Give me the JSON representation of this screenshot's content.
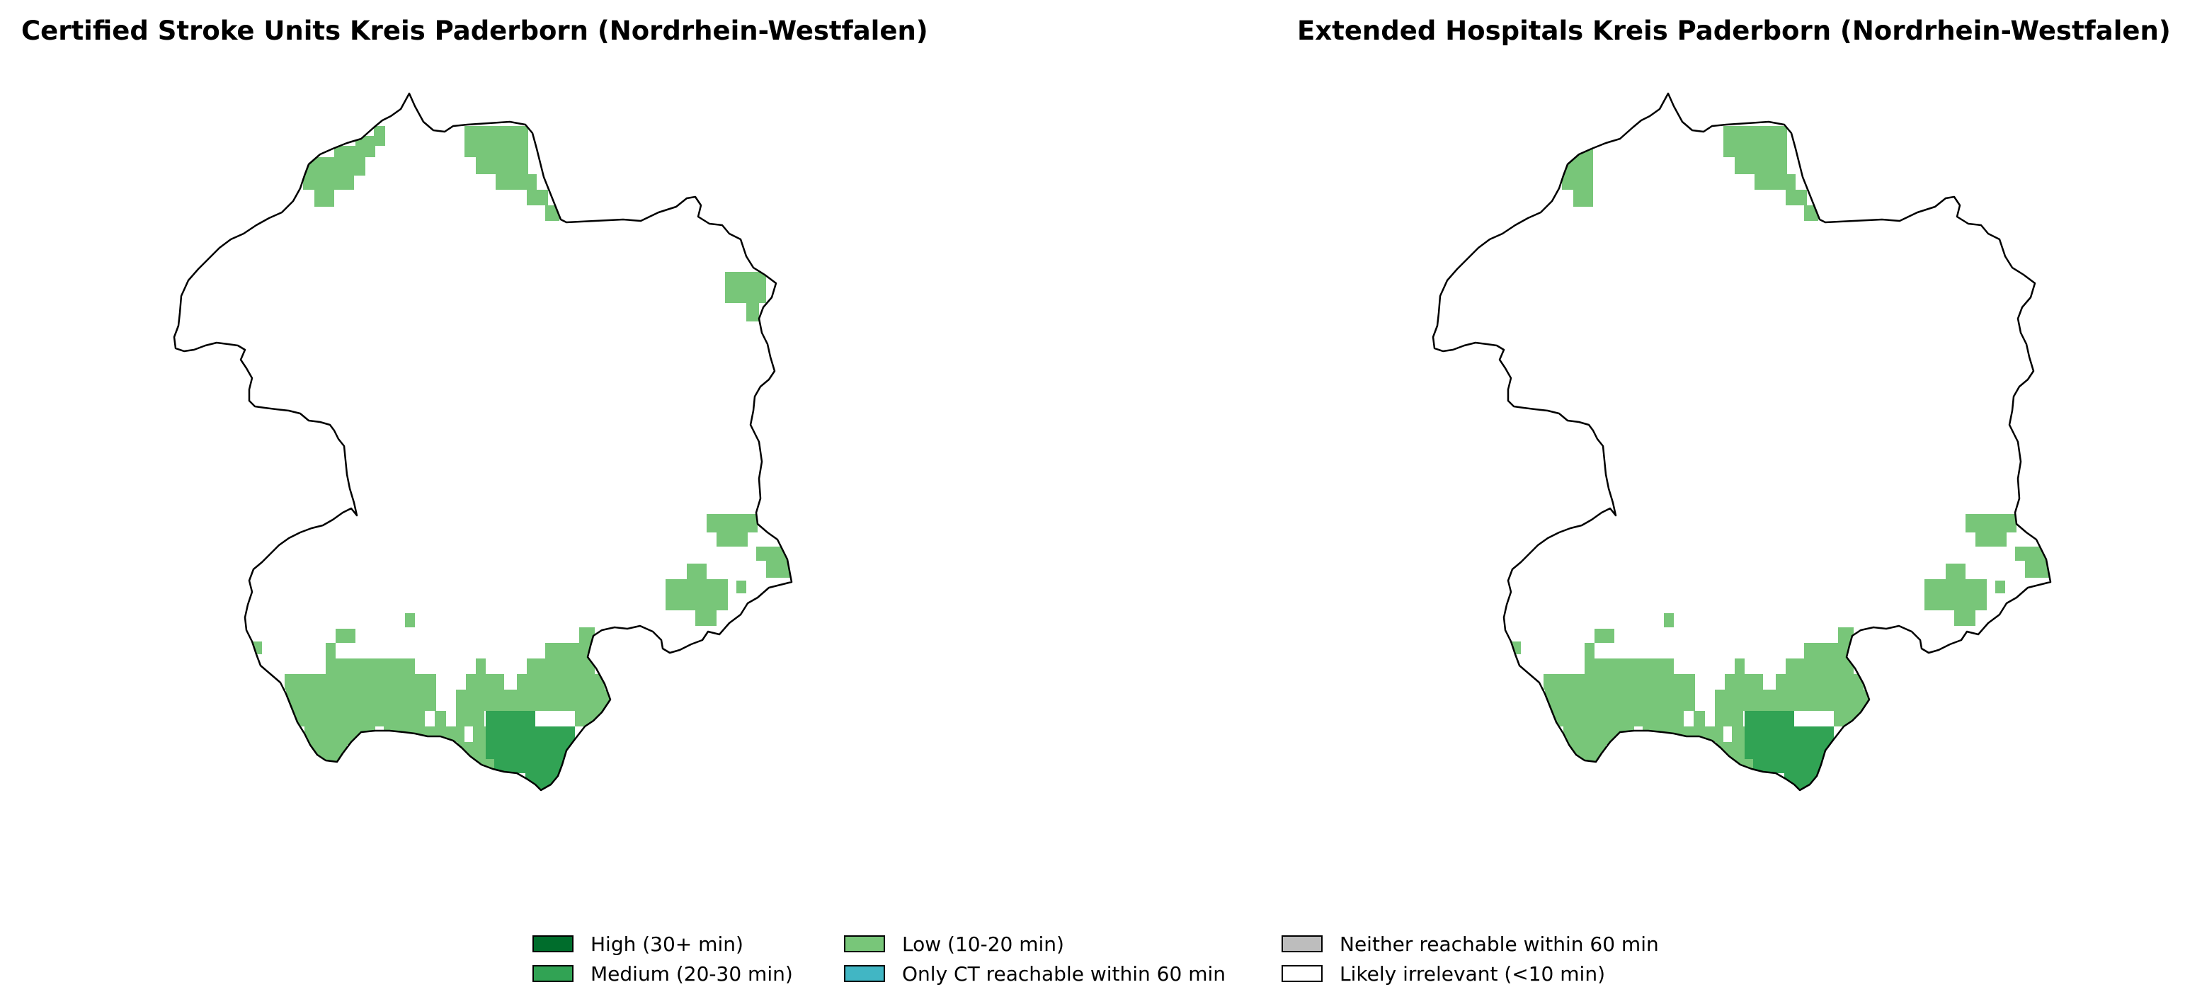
{
  "maps": [
    {
      "title": "Certified Stroke Units Kreis Paderborn (Nordrhein-Westfalen)",
      "district": "Kreis Paderborn"
    },
    {
      "title": "Extended Hospitals Kreis Paderborn (Nordrhein-Westfalen)",
      "district": "Kreis Paderborn"
    }
  ],
  "categories": [
    {
      "key": "high",
      "label": "High (30+ min)",
      "color": "#006d2c"
    },
    {
      "key": "medium",
      "label": "Medium (20-30 min)",
      "color": "#31a354"
    },
    {
      "key": "low",
      "label": "Low (10-20 min)",
      "color": "#78c679"
    },
    {
      "key": "ct_only",
      "label": "Only CT reachable within 60 min",
      "color": "#41b6c4"
    },
    {
      "key": "neither",
      "label": "Neither reachable within 60 min",
      "color": "#bdbdbd"
    },
    {
      "key": "irrelevant",
      "label": "Likely irrelevant (<10 min)",
      "color": "#ffffff"
    }
  ]
}
